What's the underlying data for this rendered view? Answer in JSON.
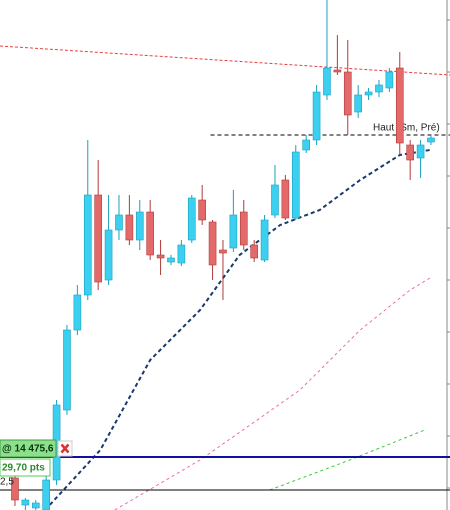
{
  "chart_data": {
    "type": "candlestick",
    "xlim": [
      -1.44,
      41.83
    ],
    "ylim": [
      0,
      510
    ],
    "up_color": "#3cd0f0",
    "down_color": "#e46a6a",
    "open": [
      32,
      5,
      2,
      0,
      30,
      100,
      180,
      215,
      315,
      230,
      280,
      295,
      270,
      298,
      255,
      248,
      247,
      270,
      310,
      288,
      260,
      262,
      298,
      265,
      250,
      295,
      330,
      292,
      360,
      370,
      415,
      440,
      438,
      398,
      415,
      418,
      422,
      442,
      365,
      352,
      368
    ],
    "close": [
      10,
      10,
      7,
      30,
      105,
      180,
      215,
      315,
      228,
      280,
      295,
      270,
      298,
      255,
      252,
      252,
      265,
      312,
      290,
      245,
      257,
      295,
      265,
      252,
      290,
      325,
      292,
      358,
      370,
      418,
      442,
      438,
      395,
      415,
      418,
      425,
      438,
      367,
      350,
      365,
      372
    ],
    "high": [
      40,
      12,
      10,
      40,
      110,
      185,
      225,
      370,
      350,
      315,
      315,
      315,
      310,
      310,
      270,
      255,
      270,
      315,
      325,
      290,
      270,
      320,
      310,
      270,
      295,
      345,
      335,
      365,
      375,
      425,
      510,
      475,
      470,
      425,
      422,
      430,
      442,
      458,
      370,
      370,
      375
    ],
    "low": [
      4,
      0,
      0,
      0,
      25,
      95,
      175,
      210,
      220,
      225,
      270,
      265,
      260,
      250,
      235,
      245,
      244,
      267,
      285,
      230,
      210,
      258,
      260,
      248,
      248,
      292,
      290,
      290,
      357,
      365,
      410,
      435,
      375,
      392,
      410,
      413,
      418,
      355,
      330,
      332,
      365
    ],
    "averages": [
      {
        "color": "#1a3a6b",
        "x": [
          2.9,
          8.2,
          13,
          17.8,
          21.6,
          25.5,
          29.3,
          33.2,
          37,
          39.9
        ],
        "values": [
          0,
          60,
          150,
          200,
          255,
          285,
          300,
          330,
          355,
          360
        ]
      },
      {
        "color": "#f06ab4",
        "x": [
          9.6,
          17.8,
          27.4,
          33.2,
          38,
          39.9
        ],
        "values": [
          0,
          50,
          120,
          180,
          220,
          232
        ]
      },
      {
        "color": "#3cc83c",
        "x": [
          24.5,
          32.2,
          39.4
        ],
        "values": [
          20,
          50,
          80
        ]
      }
    ],
    "trendline": {
      "color": "#e84040",
      "x": [
        -1.44,
        41.83
      ],
      "values": [
        464,
        435
      ]
    },
    "high_level": {
      "label": "Haut (Sm, Pré)",
      "value": 375,
      "x_start": 18.8
    },
    "price_level": {
      "value": 53,
      "color": "#1010a0",
      "price_label": "@ 14 475,6",
      "points_label": "29,70 pts"
    },
    "lower_level": {
      "value": 20,
      "label": "2,5"
    }
  }
}
